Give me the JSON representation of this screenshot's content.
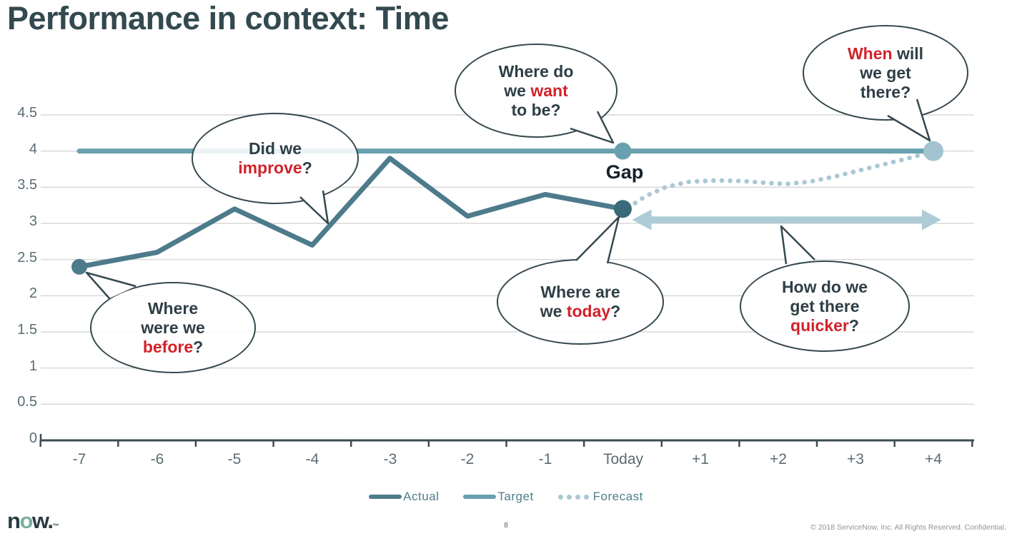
{
  "slide": {
    "title": "Performance in context: Time",
    "page_number": "8",
    "footer_copyright": "© 2018 ServiceNow, Inc. All Rights Reserved. Confidential.",
    "logo": {
      "n": "n",
      "o": "o",
      "w": "w",
      "dot": ".",
      "tm": "™"
    }
  },
  "chart_data": {
    "type": "line",
    "title": "Performance in context: Time",
    "categories": [
      "-7",
      "-6",
      "-5",
      "-4",
      "-3",
      "-2",
      "-1",
      "Today",
      "+1",
      "+2",
      "+3",
      "+4"
    ],
    "yticks": [
      4.5,
      4,
      3.5,
      3,
      2.5,
      2,
      1.5,
      1,
      0.5,
      0
    ],
    "ylim": [
      0,
      4.5
    ],
    "grid": "horizontal",
    "legend_position": "bottom",
    "legend": [
      "Actual",
      "Target",
      "Forecast"
    ],
    "series": [
      {
        "name": "Actual",
        "style": "solid",
        "color": "#4d7b8b",
        "values": [
          2.4,
          2.6,
          3.2,
          2.7,
          3.9,
          3.1,
          3.4,
          3.2,
          null,
          null,
          null,
          null
        ]
      },
      {
        "name": "Target",
        "style": "solid",
        "color": "#69a0b0",
        "values": [
          4,
          4,
          4,
          4,
          4,
          4,
          4,
          4,
          4,
          4,
          4,
          4
        ]
      },
      {
        "name": "Forecast",
        "style": "dotted",
        "color": "#a9c8d4",
        "values": [
          null,
          null,
          null,
          null,
          null,
          null,
          null,
          3.2,
          3.6,
          3.55,
          3.75,
          4.0
        ]
      }
    ],
    "forecast_curve": [
      [
        7.07,
        3.22
      ],
      [
        7.3,
        3.38
      ],
      [
        7.55,
        3.5
      ],
      [
        7.85,
        3.575
      ],
      [
        8.2,
        3.595
      ],
      [
        8.55,
        3.585
      ],
      [
        8.85,
        3.56
      ],
      [
        9.1,
        3.545
      ],
      [
        9.4,
        3.575
      ],
      [
        9.7,
        3.64
      ],
      [
        10.0,
        3.72
      ],
      [
        10.3,
        3.8
      ],
      [
        10.6,
        3.88
      ],
      [
        10.85,
        3.95
      ],
      [
        11.0,
        4.0
      ]
    ],
    "markers": [
      {
        "series": "Actual",
        "category": "-7",
        "index": 0,
        "value": 2.4,
        "color": "#4d7b8b",
        "r": 11
      },
      {
        "series": "Actual",
        "category": "Today",
        "index": 7,
        "value": 3.2,
        "color": "#3a6a79",
        "r": 12.5
      },
      {
        "series": "Target",
        "category": "Today",
        "index": 7,
        "value": 4,
        "color": "#69a0b0",
        "r": 12
      },
      {
        "series": "Target",
        "category": "+4",
        "index": 11,
        "value": 4,
        "color": "#a3c3d0",
        "r": 14
      }
    ],
    "annotations": {
      "gap_label": "Gap",
      "gap_arrow": {
        "x1_index": 7.12,
        "x2_index": 11.1,
        "value": 3.05,
        "color": "#adccd6"
      }
    },
    "axis_color": "#3b4d53",
    "gridline_color": "#d9d9d9"
  },
  "bubbles": [
    {
      "id": "where-do-we-want-to-be",
      "lines": [
        [
          {
            "t": "Where do"
          }
        ],
        [
          {
            "t": "we "
          },
          {
            "t": "want",
            "red": true
          }
        ],
        [
          {
            "t": "to be?"
          }
        ]
      ]
    },
    {
      "id": "when-will-we-get-there",
      "lines": [
        [
          {
            "t": "When",
            "red": true
          },
          {
            "t": " will"
          }
        ],
        [
          {
            "t": "we get"
          }
        ],
        [
          {
            "t": "there?"
          }
        ]
      ]
    },
    {
      "id": "did-we-improve",
      "lines": [
        [
          {
            "t": "Did we"
          }
        ],
        [
          {
            "t": "improve",
            "red": true
          },
          {
            "t": "?"
          }
        ]
      ]
    },
    {
      "id": "where-were-we-before",
      "lines": [
        [
          {
            "t": "Where"
          }
        ],
        [
          {
            "t": "were we"
          }
        ],
        [
          {
            "t": "before",
            "red": true
          },
          {
            "t": "?"
          }
        ]
      ]
    },
    {
      "id": "where-are-we-today",
      "lines": [
        [
          {
            "t": "Where are"
          }
        ],
        [
          {
            "t": "we "
          },
          {
            "t": "today",
            "red": true
          },
          {
            "t": "?"
          }
        ]
      ]
    },
    {
      "id": "how-do-we-get-there-quicker",
      "lines": [
        [
          {
            "t": "How do we"
          }
        ],
        [
          {
            "t": "get there"
          }
        ],
        [
          {
            "t": "quicker",
            "red": true
          },
          {
            "t": "?"
          }
        ]
      ]
    }
  ]
}
